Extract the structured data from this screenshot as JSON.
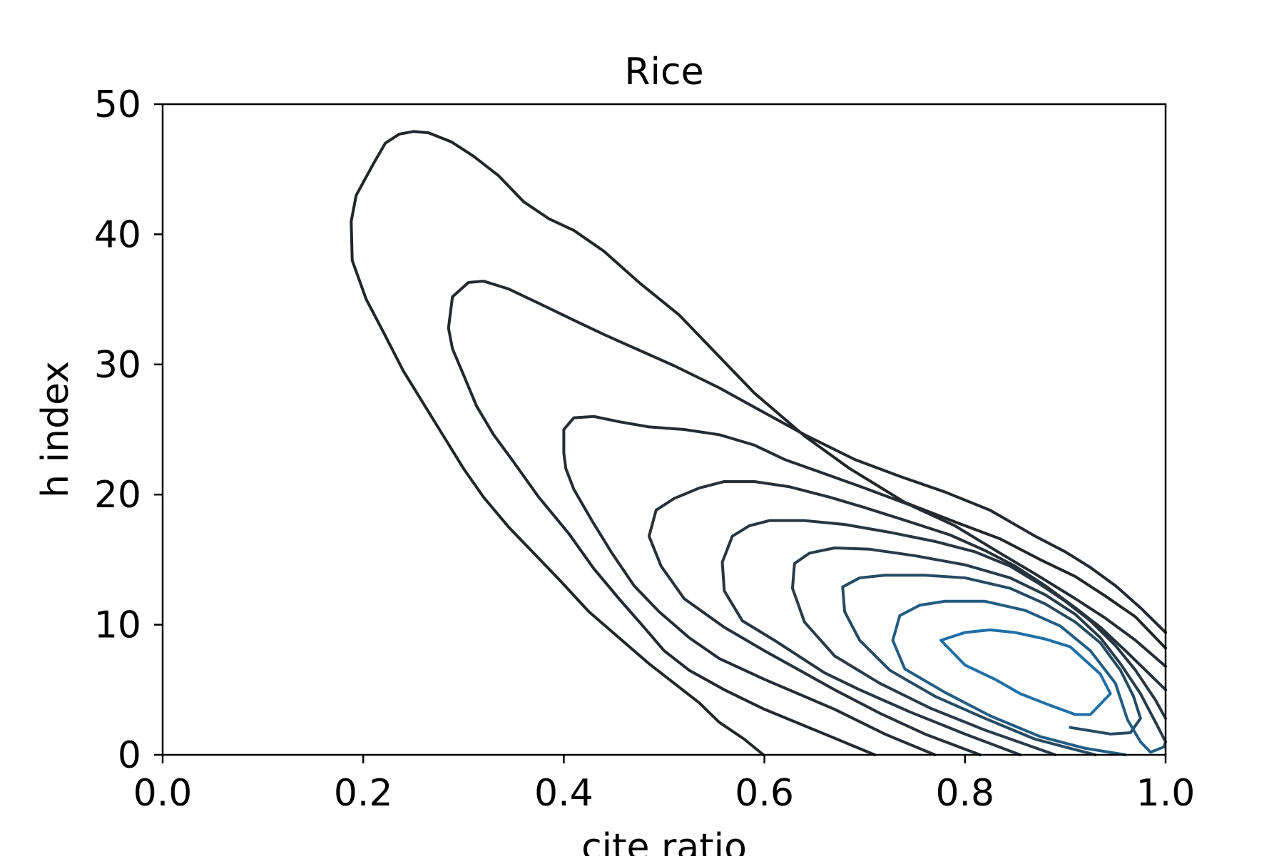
{
  "chart_data": {
    "type": "contour",
    "title": "Rice",
    "xlabel": "cite ratio",
    "ylabel": "h index",
    "xlim": [
      0.0,
      1.0
    ],
    "ylim": [
      0,
      50
    ],
    "xticks": [
      "0.0",
      "0.2",
      "0.4",
      "0.6",
      "0.8",
      "1.0"
    ],
    "yticks": [
      "0",
      "10",
      "20",
      "30",
      "40",
      "50"
    ],
    "grid": false,
    "contours": [
      {
        "level": 1,
        "color": "#232629",
        "points": [
          [
            0.599,
            0
          ],
          [
            0.58,
            1.2
          ],
          [
            0.555,
            2.5
          ],
          [
            0.535,
            4.0
          ],
          [
            0.51,
            5.5
          ],
          [
            0.485,
            7.0
          ],
          [
            0.455,
            9.0
          ],
          [
            0.425,
            11.0
          ],
          [
            0.395,
            13.5
          ],
          [
            0.37,
            15.5
          ],
          [
            0.345,
            17.5
          ],
          [
            0.32,
            19.8
          ],
          [
            0.3,
            22.0
          ],
          [
            0.28,
            24.5
          ],
          [
            0.26,
            27.0
          ],
          [
            0.24,
            29.5
          ],
          [
            0.22,
            32.5
          ],
          [
            0.203,
            35.0
          ],
          [
            0.189,
            38.0
          ],
          [
            0.188,
            41.0
          ],
          [
            0.193,
            43.0
          ],
          [
            0.21,
            45.4
          ],
          [
            0.222,
            47.0
          ],
          [
            0.236,
            47.7
          ],
          [
            0.25,
            47.9
          ],
          [
            0.265,
            47.8
          ],
          [
            0.288,
            47.1
          ],
          [
            0.31,
            46.0
          ],
          [
            0.335,
            44.5
          ],
          [
            0.36,
            42.5
          ],
          [
            0.385,
            41.2
          ],
          [
            0.41,
            40.3
          ],
          [
            0.44,
            38.7
          ],
          [
            0.475,
            36.3
          ],
          [
            0.515,
            33.8
          ],
          [
            0.55,
            31.0
          ],
          [
            0.59,
            27.8
          ],
          [
            0.64,
            24.5
          ],
          [
            0.685,
            22.0
          ],
          [
            0.74,
            19.4
          ],
          [
            0.79,
            17.9
          ],
          [
            0.835,
            16.6
          ],
          [
            0.875,
            15.0
          ],
          [
            0.91,
            13.7
          ],
          [
            0.94,
            12.2
          ],
          [
            0.97,
            10.6
          ],
          [
            1.0,
            8.2
          ]
        ]
      },
      {
        "level": 2,
        "color": "#24292f",
        "points": [
          [
            0.71,
            0
          ],
          [
            0.66,
            1.6
          ],
          [
            0.6,
            3.5
          ],
          [
            0.56,
            5.0
          ],
          [
            0.525,
            6.5
          ],
          [
            0.5,
            8.0
          ],
          [
            0.48,
            9.8
          ],
          [
            0.455,
            12.0
          ],
          [
            0.43,
            14.3
          ],
          [
            0.405,
            17.0
          ],
          [
            0.375,
            19.8
          ],
          [
            0.35,
            22.5
          ],
          [
            0.33,
            24.6
          ],
          [
            0.313,
            26.8
          ],
          [
            0.3,
            29.2
          ],
          [
            0.289,
            31.2
          ],
          [
            0.285,
            32.8
          ],
          [
            0.289,
            35.2
          ],
          [
            0.305,
            36.3
          ],
          [
            0.32,
            36.4
          ],
          [
            0.345,
            35.8
          ],
          [
            0.375,
            34.7
          ],
          [
            0.41,
            33.4
          ],
          [
            0.44,
            32.3
          ],
          [
            0.475,
            31.1
          ],
          [
            0.51,
            29.9
          ],
          [
            0.555,
            28.2
          ],
          [
            0.595,
            26.5
          ],
          [
            0.64,
            24.6
          ],
          [
            0.69,
            22.7
          ],
          [
            0.735,
            21.4
          ],
          [
            0.78,
            20.2
          ],
          [
            0.825,
            18.8
          ],
          [
            0.87,
            16.8
          ],
          [
            0.9,
            15.6
          ],
          [
            0.925,
            14.4
          ],
          [
            0.95,
            13.0
          ],
          [
            0.975,
            11.3
          ],
          [
            1.0,
            9.4
          ]
        ]
      },
      {
        "level": 3,
        "color": "#252d34",
        "points": [
          [
            0.77,
            0
          ],
          [
            0.72,
            1.6
          ],
          [
            0.67,
            3.5
          ],
          [
            0.6,
            5.8
          ],
          [
            0.555,
            7.4
          ],
          [
            0.525,
            9.0
          ],
          [
            0.495,
            11.0
          ],
          [
            0.47,
            13.0
          ],
          [
            0.448,
            15.5
          ],
          [
            0.428,
            18.0
          ],
          [
            0.41,
            20.4
          ],
          [
            0.402,
            22.0
          ],
          [
            0.4,
            23.2
          ],
          [
            0.4,
            25.0
          ],
          [
            0.41,
            25.9
          ],
          [
            0.43,
            26.0
          ],
          [
            0.455,
            25.6
          ],
          [
            0.485,
            25.2
          ],
          [
            0.52,
            25.0
          ],
          [
            0.555,
            24.6
          ],
          [
            0.59,
            23.8
          ],
          [
            0.62,
            22.7
          ],
          [
            0.66,
            21.6
          ],
          [
            0.7,
            20.5
          ],
          [
            0.745,
            19.2
          ],
          [
            0.79,
            17.6
          ],
          [
            0.835,
            15.5
          ],
          [
            0.87,
            13.9
          ],
          [
            0.91,
            12.0
          ],
          [
            0.94,
            10.5
          ],
          [
            0.97,
            8.8
          ],
          [
            1.0,
            6.8
          ]
        ]
      },
      {
        "level": 4,
        "color": "#263139",
        "points": [
          [
            0.815,
            0
          ],
          [
            0.76,
            1.6
          ],
          [
            0.715,
            3.2
          ],
          [
            0.67,
            5.0
          ],
          [
            0.6,
            8.0
          ],
          [
            0.56,
            9.8
          ],
          [
            0.52,
            12.0
          ],
          [
            0.497,
            14.5
          ],
          [
            0.485,
            16.8
          ],
          [
            0.492,
            18.8
          ],
          [
            0.51,
            19.7
          ],
          [
            0.535,
            20.5
          ],
          [
            0.56,
            21.0
          ],
          [
            0.59,
            21.0
          ],
          [
            0.625,
            20.6
          ],
          [
            0.665,
            19.8
          ],
          [
            0.7,
            19.0
          ],
          [
            0.745,
            17.9
          ],
          [
            0.785,
            16.9
          ],
          [
            0.82,
            15.7
          ],
          [
            0.85,
            14.5
          ],
          [
            0.88,
            13.0
          ],
          [
            0.91,
            11.3
          ],
          [
            0.935,
            9.8
          ],
          [
            0.96,
            8.0
          ],
          [
            0.98,
            6.5
          ],
          [
            1.0,
            5.0
          ]
        ]
      },
      {
        "level": 5,
        "color": "#273640",
        "points": [
          [
            0.855,
            0
          ],
          [
            0.8,
            1.6
          ],
          [
            0.745,
            3.3
          ],
          [
            0.695,
            5.0
          ],
          [
            0.66,
            6.3
          ],
          [
            0.61,
            8.8
          ],
          [
            0.578,
            10.3
          ],
          [
            0.56,
            12.6
          ],
          [
            0.558,
            14.8
          ],
          [
            0.568,
            16.8
          ],
          [
            0.585,
            17.6
          ],
          [
            0.605,
            18.0
          ],
          [
            0.64,
            18.0
          ],
          [
            0.68,
            17.7
          ],
          [
            0.725,
            17.1
          ],
          [
            0.77,
            16.4
          ],
          [
            0.81,
            15.6
          ],
          [
            0.845,
            14.5
          ],
          [
            0.875,
            13.1
          ],
          [
            0.9,
            11.8
          ],
          [
            0.925,
            10.3
          ],
          [
            0.95,
            8.4
          ],
          [
            0.97,
            6.5
          ],
          [
            0.99,
            4.2
          ],
          [
            1.0,
            2.8
          ]
        ]
      },
      {
        "level": 6,
        "color": "#283c4a",
        "points": [
          [
            0.89,
            0
          ],
          [
            0.82,
            1.9
          ],
          [
            0.765,
            3.6
          ],
          [
            0.715,
            5.5
          ],
          [
            0.67,
            7.6
          ],
          [
            0.64,
            10.2
          ],
          [
            0.628,
            12.8
          ],
          [
            0.63,
            14.7
          ],
          [
            0.645,
            15.5
          ],
          [
            0.67,
            15.9
          ],
          [
            0.705,
            15.8
          ],
          [
            0.75,
            15.3
          ],
          [
            0.8,
            14.6
          ],
          [
            0.845,
            13.6
          ],
          [
            0.88,
            12.3
          ],
          [
            0.91,
            10.8
          ],
          [
            0.935,
            9.0
          ],
          [
            0.955,
            7.0
          ],
          [
            0.975,
            4.7
          ],
          [
            0.99,
            2.5
          ],
          [
            1.0,
            1.0
          ]
        ]
      },
      {
        "level": 7,
        "color": "#264b63",
        "points": [
          [
            0.93,
            0
          ],
          [
            0.87,
            1.2
          ],
          [
            0.82,
            2.8
          ],
          [
            0.77,
            4.5
          ],
          [
            0.725,
            6.5
          ],
          [
            0.695,
            8.8
          ],
          [
            0.68,
            11.0
          ],
          [
            0.678,
            12.9
          ],
          [
            0.695,
            13.6
          ],
          [
            0.72,
            13.8
          ],
          [
            0.76,
            13.8
          ],
          [
            0.8,
            13.6
          ],
          [
            0.845,
            12.8
          ],
          [
            0.88,
            11.6
          ],
          [
            0.91,
            10.2
          ],
          [
            0.935,
            8.6
          ],
          [
            0.955,
            6.5
          ],
          [
            0.968,
            4.5
          ],
          [
            0.975,
            2.8
          ],
          [
            0.965,
            1.7
          ],
          [
            0.945,
            1.6
          ],
          [
            0.905,
            2.1
          ]
        ]
      },
      {
        "level": 8,
        "color": "#235d83",
        "points": [
          [
            0.96,
            0
          ],
          [
            0.92,
            0.5
          ],
          [
            0.875,
            1.4
          ],
          [
            0.825,
            3.0
          ],
          [
            0.78,
            4.8
          ],
          [
            0.74,
            6.6
          ],
          [
            0.728,
            8.8
          ],
          [
            0.735,
            10.7
          ],
          [
            0.755,
            11.5
          ],
          [
            0.78,
            11.8
          ],
          [
            0.82,
            11.8
          ],
          [
            0.86,
            11.1
          ],
          [
            0.895,
            9.9
          ],
          [
            0.925,
            8.0
          ],
          [
            0.95,
            5.5
          ],
          [
            0.962,
            2.7
          ],
          [
            0.975,
            1.0
          ],
          [
            0.985,
            0.2
          ],
          [
            0.998,
            0.6
          ],
          [
            1.0,
            1.0
          ]
        ]
      },
      {
        "level": 9,
        "color": "#1f6fa8",
        "points": [
          [
            0.776,
            8.8
          ],
          [
            0.8,
            6.9
          ],
          [
            0.83,
            5.8
          ],
          [
            0.855,
            4.7
          ],
          [
            0.885,
            3.8
          ],
          [
            0.91,
            3.1
          ],
          [
            0.925,
            3.1
          ],
          [
            0.945,
            4.7
          ],
          [
            0.935,
            6.2
          ],
          [
            0.905,
            8.3
          ],
          [
            0.88,
            8.9
          ],
          [
            0.85,
            9.4
          ],
          [
            0.825,
            9.6
          ],
          [
            0.8,
            9.4
          ],
          [
            0.776,
            8.8
          ]
        ]
      }
    ]
  }
}
